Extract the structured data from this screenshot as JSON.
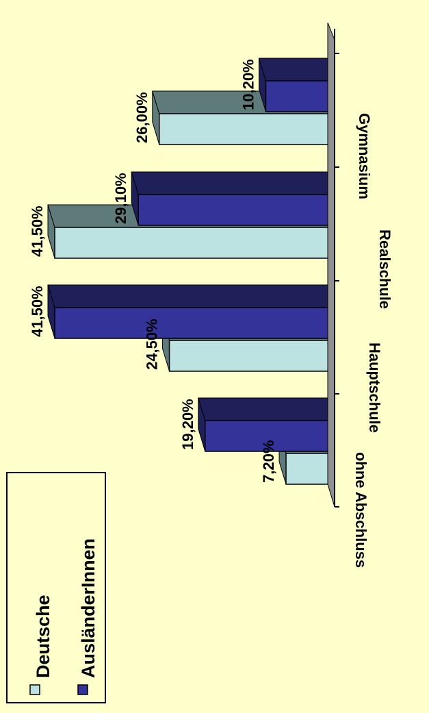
{
  "chart_data": {
    "type": "bar",
    "orientation": "rotated-90",
    "title": "",
    "xlabel": "",
    "ylabel": "",
    "categories": [
      "ohne Abschluss",
      "Hauptschule",
      "Realschule",
      "Gymnasium"
    ],
    "series": [
      {
        "name": "Deutsche",
        "values": [
          7.2,
          24.5,
          41.5,
          26.0
        ],
        "labels": [
          "7,20%",
          "24,50%",
          "41,50%",
          "26,00%"
        ],
        "color": "#bde2e2",
        "top_color": "#5f7a7a"
      },
      {
        "name": "AusländerInnen",
        "values": [
          19.2,
          41.5,
          29.1,
          10.2
        ],
        "labels": [
          "19,20%",
          "41,50%",
          "29,10%",
          "10,20%"
        ],
        "color": "#333399",
        "top_color": "#1f1f5a"
      }
    ],
    "ylim": [
      0,
      45
    ],
    "grid": false,
    "legend": "bottom-left"
  },
  "legend": {
    "items": [
      {
        "label": "Deutsche",
        "color": "#bde2e2"
      },
      {
        "label": "AusländerInnen",
        "color": "#333399"
      }
    ]
  },
  "colors": {
    "background": "#ffffcc",
    "axis": "#808080"
  }
}
